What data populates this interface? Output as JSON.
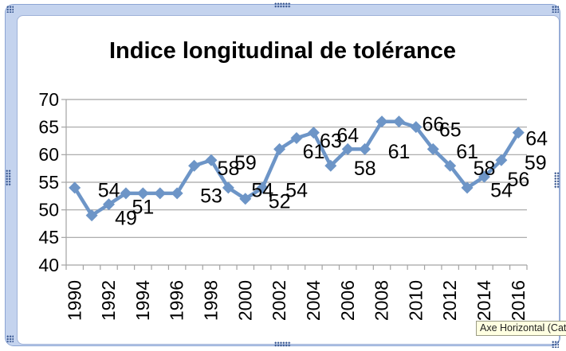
{
  "window": {
    "tooltip": "Axe Horizontal (Catégo"
  },
  "chart_data": {
    "type": "line",
    "title": "Indice longitudinal de tolérance",
    "x": [
      1990,
      1991,
      1992,
      1993,
      1994,
      1995,
      1996,
      1997,
      1998,
      1999,
      2000,
      2001,
      2002,
      2003,
      2004,
      2005,
      2006,
      2007,
      2008,
      2009,
      2010,
      2011,
      2012,
      2013,
      2014,
      2015,
      2016
    ],
    "values": [
      54,
      49,
      51,
      53,
      53,
      53,
      53,
      58,
      59,
      54,
      52,
      54,
      61,
      63,
      64,
      58,
      61,
      61,
      66,
      66,
      65,
      61,
      58,
      54,
      56,
      59,
      64
    ],
    "point_labels": [
      "54",
      "49",
      "51",
      null,
      null,
      null,
      "53",
      "58",
      "59",
      "54",
      "52",
      "54",
      "61",
      "63",
      "64",
      "58",
      null,
      "61",
      null,
      "66",
      "65",
      "61",
      "58",
      "54",
      "56",
      "59",
      "64"
    ],
    "xticks": [
      1990,
      1992,
      1994,
      1996,
      1998,
      2000,
      2002,
      2004,
      2006,
      2008,
      2010,
      2012,
      2014,
      2016
    ],
    "yticks": [
      40,
      45,
      50,
      55,
      60,
      65,
      70
    ],
    "ylim": [
      40,
      70
    ],
    "grid": true,
    "legend": "none",
    "xlabel": "",
    "ylabel": "",
    "series_color": "#6D95C7",
    "gridline_color": "#A3A3A3",
    "label_color": "#000000",
    "label_offset": {
      "dx": 29,
      "dy": 3
    },
    "label_offset_overrides": {
      "26": {
        "dx": 9,
        "dy": 7
      }
    }
  }
}
